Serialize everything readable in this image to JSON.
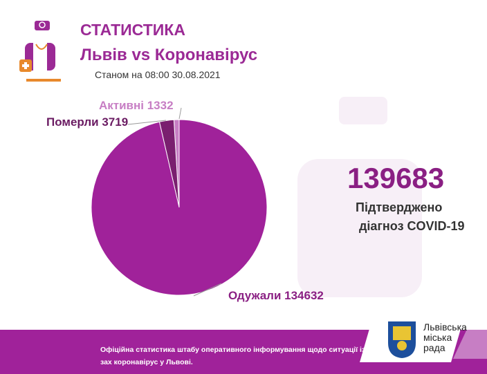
{
  "header": {
    "title": "СТАТИСТИКА",
    "subtitle": "Львів vs Коронавірус",
    "date": "Станом на 08:00 30.08.2021"
  },
  "summary": {
    "total": "139683",
    "line1": "Підтверджено",
    "line2": "діагноз COVID-19"
  },
  "footer": {
    "text": "Офіційна статистика штабу оперативного інформування щодо ситуації із зах коронавірус у Львові.",
    "logo_text": [
      "Львівська",
      "міська",
      "рада"
    ]
  },
  "colors": {
    "primary": "#a0229a",
    "dark": "#7a1f6f",
    "light": "#c77ec4"
  },
  "chart_data": {
    "type": "pie",
    "slices": [
      {
        "name": "Активні",
        "value": 1332,
        "label": "Активні 1332",
        "color": "#c77ec4"
      },
      {
        "name": "Померли",
        "value": 3719,
        "label": "Померли 3719",
        "color": "#7a1f6f"
      },
      {
        "name": "Одужали",
        "value": 134632,
        "label": "Одужали 134632",
        "color": "#a0229a"
      }
    ]
  }
}
